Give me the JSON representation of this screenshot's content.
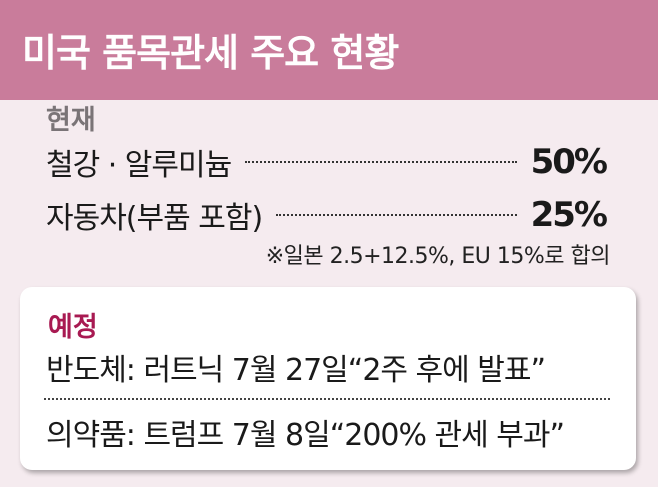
{
  "header": {
    "title": "미국 품목관세 주요 현황"
  },
  "current": {
    "heading": "현재",
    "items": [
      {
        "label": "철강 · 알루미늄",
        "value": "50%"
      },
      {
        "label": "자동차(부품 포함)",
        "value": "25%"
      }
    ],
    "note": "※일본 2.5+12.5%, EU 15%로 합의"
  },
  "planned": {
    "heading": "예정",
    "items": [
      {
        "text": "반도체: 러트닉 7월 27일“2주 후에 발표”"
      },
      {
        "text": "의약품: 트럼프 7월 8일“200% 관세 부과”"
      }
    ]
  },
  "colors": {
    "header": "#c97c9b",
    "background": "#f5ebef",
    "planned_heading": "#a81a52"
  }
}
